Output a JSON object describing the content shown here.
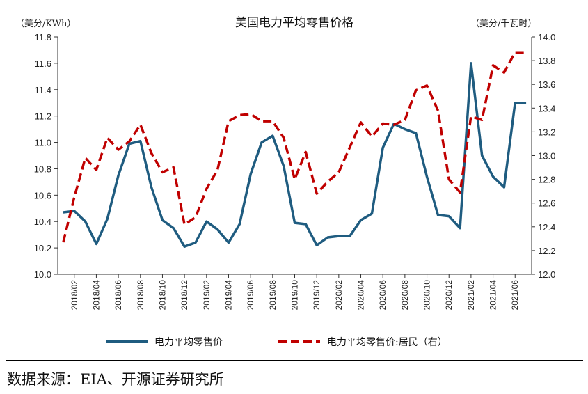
{
  "chart_data": {
    "type": "line",
    "title": "美国电力平均零售价格",
    "left_unit": "（美分/KWh）",
    "right_unit": "（美分/千瓦时）",
    "x": [
      "2018/01",
      "2018/02",
      "2018/03",
      "2018/04",
      "2018/05",
      "2018/06",
      "2018/07",
      "2018/08",
      "2018/09",
      "2018/10",
      "2018/11",
      "2018/12",
      "2019/01",
      "2019/02",
      "2019/03",
      "2019/04",
      "2019/05",
      "2019/06",
      "2019/07",
      "2019/08",
      "2019/09",
      "2019/10",
      "2019/11",
      "2019/12",
      "2020/01",
      "2020/02",
      "2020/03",
      "2020/04",
      "2020/05",
      "2020/06",
      "2020/07",
      "2020/08",
      "2020/09",
      "2020/10",
      "2020/11",
      "2020/12",
      "2021/01",
      "2021/02",
      "2021/03",
      "2021/04",
      "2021/05",
      "2021/06",
      "2021/07"
    ],
    "x_tick_labels": [
      "2018/02",
      "2018/04",
      "2018/06",
      "2018/08",
      "2018/10",
      "2018/12",
      "2019/02",
      "2019/04",
      "2019/06",
      "2019/08",
      "2019/10",
      "2019/12",
      "2020/02",
      "2020/04",
      "2020/06",
      "2020/08",
      "2020/10",
      "2020/12",
      "2021/02",
      "2021/04",
      "2021/06"
    ],
    "y_left_ticks": [
      "10.0",
      "10.2",
      "10.4",
      "10.6",
      "10.8",
      "11.0",
      "11.2",
      "11.4",
      "11.6",
      "11.8"
    ],
    "y_right_ticks": [
      "12.0",
      "12.2",
      "12.4",
      "12.6",
      "12.8",
      "13.0",
      "13.2",
      "13.4",
      "13.6",
      "13.8",
      "14.0"
    ],
    "ylim_left": [
      10.0,
      11.8
    ],
    "ylim_right": [
      12.0,
      14.0
    ],
    "series": [
      {
        "name": "电力平均零售价",
        "axis": "left",
        "style": "solid",
        "color": "#1f5c80",
        "values": [
          10.47,
          10.48,
          10.4,
          10.23,
          10.42,
          10.75,
          10.99,
          11.01,
          10.66,
          10.41,
          10.35,
          10.21,
          10.24,
          10.4,
          10.34,
          10.24,
          10.38,
          10.76,
          11.0,
          11.05,
          10.82,
          10.39,
          10.38,
          10.22,
          10.28,
          10.29,
          10.29,
          10.41,
          10.46,
          10.96,
          11.14,
          11.1,
          11.07,
          10.74,
          10.45,
          10.44,
          10.35,
          11.6,
          10.9,
          10.74,
          10.66,
          11.3,
          11.3
        ]
      },
      {
        "name": "电力平均零售价:居民（右）",
        "axis": "right",
        "style": "dashed",
        "color": "#c00000",
        "values": [
          12.27,
          12.65,
          12.98,
          12.88,
          13.15,
          13.05,
          13.12,
          13.26,
          13.02,
          12.86,
          12.9,
          12.42,
          12.48,
          12.72,
          12.88,
          13.29,
          13.34,
          13.35,
          13.29,
          13.29,
          13.15,
          12.8,
          13.03,
          12.68,
          12.78,
          12.86,
          13.07,
          13.28,
          13.16,
          13.27,
          13.26,
          13.3,
          13.55,
          13.59,
          13.38,
          12.8,
          12.69,
          13.33,
          13.3,
          13.76,
          13.7,
          13.87,
          13.87
        ]
      }
    ],
    "grid": false,
    "legend": "bottom-center"
  },
  "source": "数据来源：EIA、开源证券研究所"
}
